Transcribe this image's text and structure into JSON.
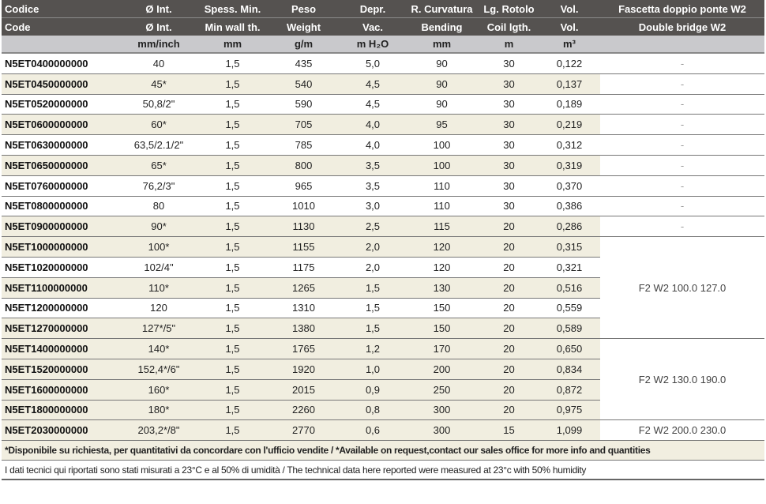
{
  "header_it": [
    "Codice",
    "Ø Int.",
    "Spess. Min.",
    "Peso",
    "Depr.",
    "R. Curvatura",
    "Lg. Rotolo",
    "Vol.",
    "Fascetta doppio ponte W2"
  ],
  "header_en": [
    "Code",
    "Ø Int.",
    "Min wall th.",
    "Weight",
    "Vac.",
    "Bending",
    "Coil lgth.",
    "Vol.",
    "Double bridge W2"
  ],
  "units": [
    "",
    "mm/inch",
    "mm",
    "g/m",
    "m H₂O",
    "mm",
    "m",
    "m³",
    ""
  ],
  "rows": [
    {
      "code": "N5ET0400000000",
      "d": "40",
      "s": "1,5",
      "w": "435",
      "v": "5,0",
      "b": "90",
      "l": "30",
      "vol": "0,122",
      "w2": "-"
    },
    {
      "code": "N5ET0450000000",
      "d": "45*",
      "s": "1,5",
      "w": "540",
      "v": "4,5",
      "b": "90",
      "l": "30",
      "vol": "0,137",
      "w2": "-"
    },
    {
      "code": "N5ET0520000000",
      "d": "50,8/2\"",
      "s": "1,5",
      "w": "590",
      "v": "4,5",
      "b": "90",
      "l": "30",
      "vol": "0,189",
      "w2": "-"
    },
    {
      "code": "N5ET0600000000",
      "d": "60*",
      "s": "1,5",
      "w": "705",
      "v": "4,0",
      "b": "95",
      "l": "30",
      "vol": "0,219",
      "w2": "-"
    },
    {
      "code": "N5ET0630000000",
      "d": "63,5/2.1/2\"",
      "s": "1,5",
      "w": "785",
      "v": "4,0",
      "b": "100",
      "l": "30",
      "vol": "0,312",
      "w2": "-"
    },
    {
      "code": "N5ET0650000000",
      "d": "65*",
      "s": "1,5",
      "w": "800",
      "v": "3,5",
      "b": "100",
      "l": "30",
      "vol": "0,319",
      "w2": "-"
    },
    {
      "code": "N5ET0760000000",
      "d": "76,2/3\"",
      "s": "1,5",
      "w": "965",
      "v": "3,5",
      "b": "110",
      "l": "30",
      "vol": "0,370",
      "w2": "-"
    },
    {
      "code": "N5ET0800000000",
      "d": "80",
      "s": "1,5",
      "w": "1010",
      "v": "3,0",
      "b": "110",
      "l": "30",
      "vol": "0,386",
      "w2": "-"
    },
    {
      "code": "N5ET0900000000",
      "d": "90*",
      "s": "1,5",
      "w": "1130",
      "v": "2,5",
      "b": "115",
      "l": "20",
      "vol": "0,286",
      "w2": "-"
    },
    {
      "code": "N5ET1000000000",
      "d": "100*",
      "s": "1,5",
      "w": "1155",
      "v": "2,0",
      "b": "120",
      "l": "20",
      "vol": "0,315",
      "w2": "F2 W2 100.0 127.0"
    },
    {
      "code": "N5ET1020000000",
      "d": "102/4\"",
      "s": "1,5",
      "w": "1175",
      "v": "2,0",
      "b": "120",
      "l": "20",
      "vol": "0,321"
    },
    {
      "code": "N5ET1100000000",
      "d": "110*",
      "s": "1,5",
      "w": "1265",
      "v": "1,5",
      "b": "130",
      "l": "20",
      "vol": "0,516"
    },
    {
      "code": "N5ET1200000000",
      "d": "120",
      "s": "1,5",
      "w": "1310",
      "v": "1,5",
      "b": "150",
      "l": "20",
      "vol": "0,559"
    },
    {
      "code": "N5ET1270000000",
      "d": "127*/5\"",
      "s": "1,5",
      "w": "1380",
      "v": "1,5",
      "b": "150",
      "l": "20",
      "vol": "0,589"
    },
    {
      "code": "N5ET1400000000",
      "d": "140*",
      "s": "1,5",
      "w": "1765",
      "v": "1,2",
      "b": "170",
      "l": "20",
      "vol": "0,650",
      "w2": "F2 W2 130.0 190.0"
    },
    {
      "code": "N5ET1520000000",
      "d": "152,4*/6\"",
      "s": "1,5",
      "w": "1920",
      "v": "1,0",
      "b": "200",
      "l": "20",
      "vol": "0,834"
    },
    {
      "code": "N5ET1600000000",
      "d": "160*",
      "s": "1,5",
      "w": "2015",
      "v": "0,9",
      "b": "250",
      "l": "20",
      "vol": "0,872"
    },
    {
      "code": "N5ET1800000000",
      "d": "180*",
      "s": "1,5",
      "w": "2260",
      "v": "0,8",
      "b": "300",
      "l": "20",
      "vol": "0,975"
    },
    {
      "code": "N5ET2030000000",
      "d": "203,2*/8\"",
      "s": "1,5",
      "w": "2770",
      "v": "0,6",
      "b": "300",
      "l": "15",
      "vol": "1,099",
      "w2": "F2 W2 200.0 230.0"
    }
  ],
  "note_availability": "*Disponibile su richiesta, per quantitativi da concordare con l'ufficio vendite / *Available on request,contact our sales office for more info and quantities",
  "note_conditions": "I dati tecnici qui riportati sono stati misurati a 23°C e al 50% di umidità / The technical data here reported were measured at 23°c with 50% humidity"
}
